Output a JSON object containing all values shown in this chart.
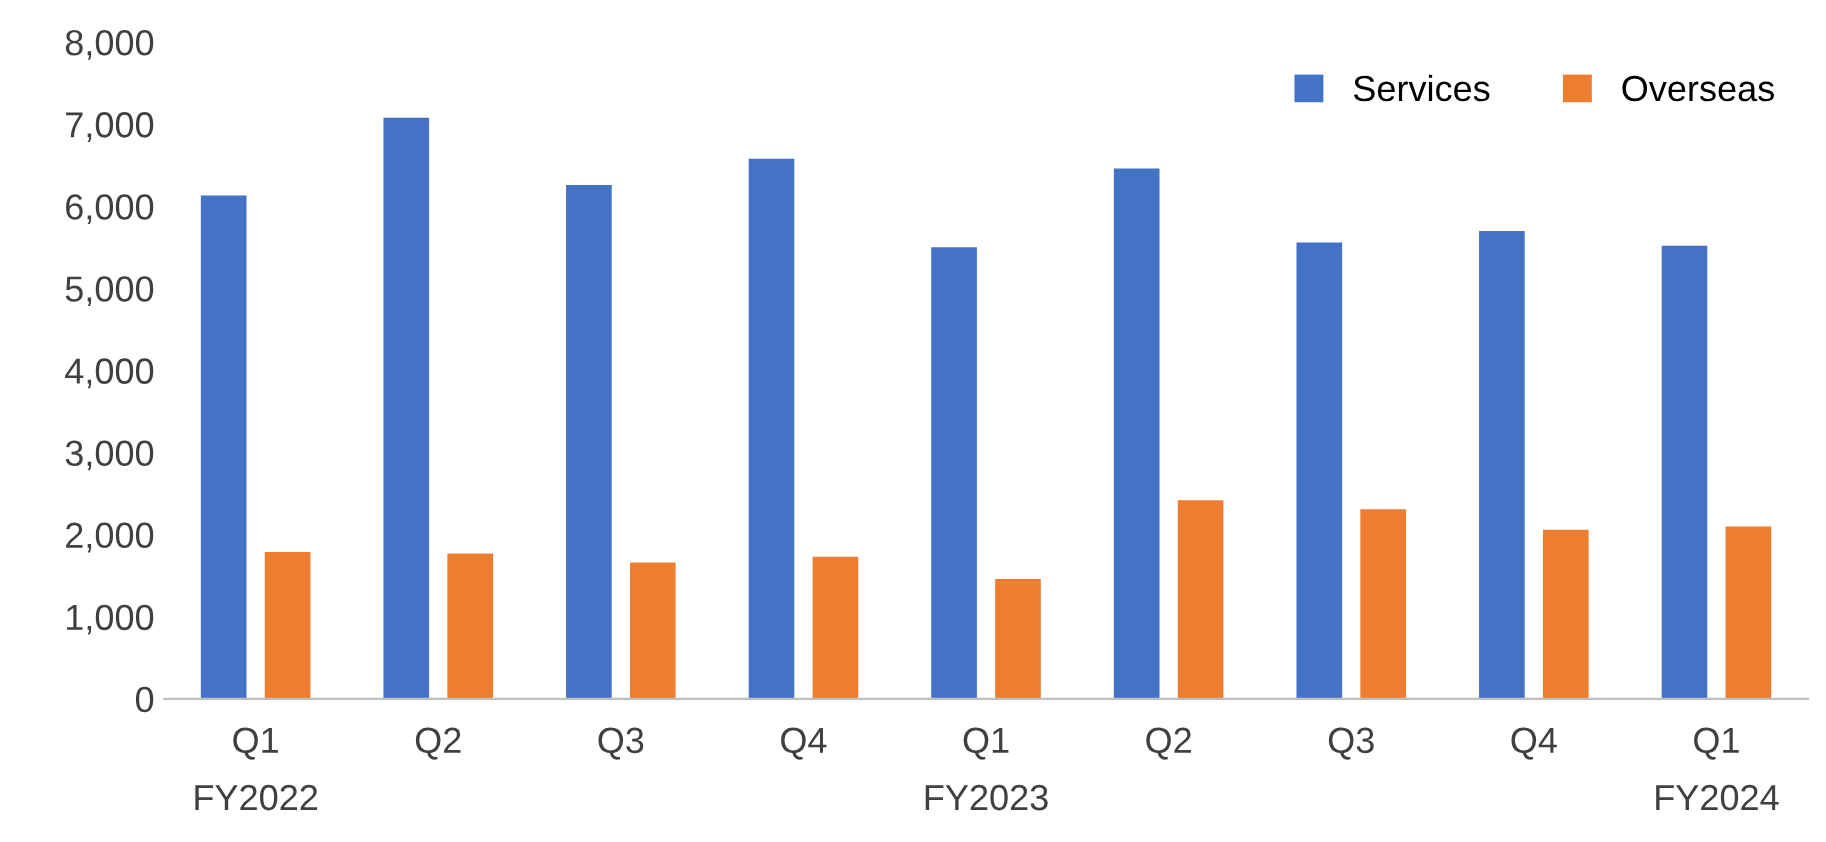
{
  "chart_data": {
    "type": "bar",
    "categories": [
      "Q1\nFY2022",
      "Q2",
      "Q3",
      "Q4",
      "Q1\nFY2023",
      "Q2",
      "Q3",
      "Q4",
      "Q1\nFY2024"
    ],
    "series": [
      {
        "name": "Services",
        "color": "#4472c4",
        "values": [
          6130,
          7080,
          6260,
          6580,
          5500,
          6460,
          5560,
          5700,
          5520
        ]
      },
      {
        "name": "Overseas",
        "color": "#ed7d31",
        "values": [
          1790,
          1770,
          1660,
          1730,
          1460,
          2420,
          2310,
          2060,
          2100
        ]
      }
    ],
    "ylim": [
      0,
      8000
    ],
    "yticks": [
      {
        "value": 0,
        "label": "0"
      },
      {
        "value": 1000,
        "label": "1,000"
      },
      {
        "value": 2000,
        "label": "2,000"
      },
      {
        "value": 3000,
        "label": "3,000"
      },
      {
        "value": 4000,
        "label": "4,000"
      },
      {
        "value": 5000,
        "label": "5,000"
      },
      {
        "value": 6000,
        "label": "6,000"
      },
      {
        "value": 7000,
        "label": "7,000"
      },
      {
        "value": 8000,
        "label": "8,000"
      }
    ],
    "grid": false,
    "legend": "top right"
  }
}
